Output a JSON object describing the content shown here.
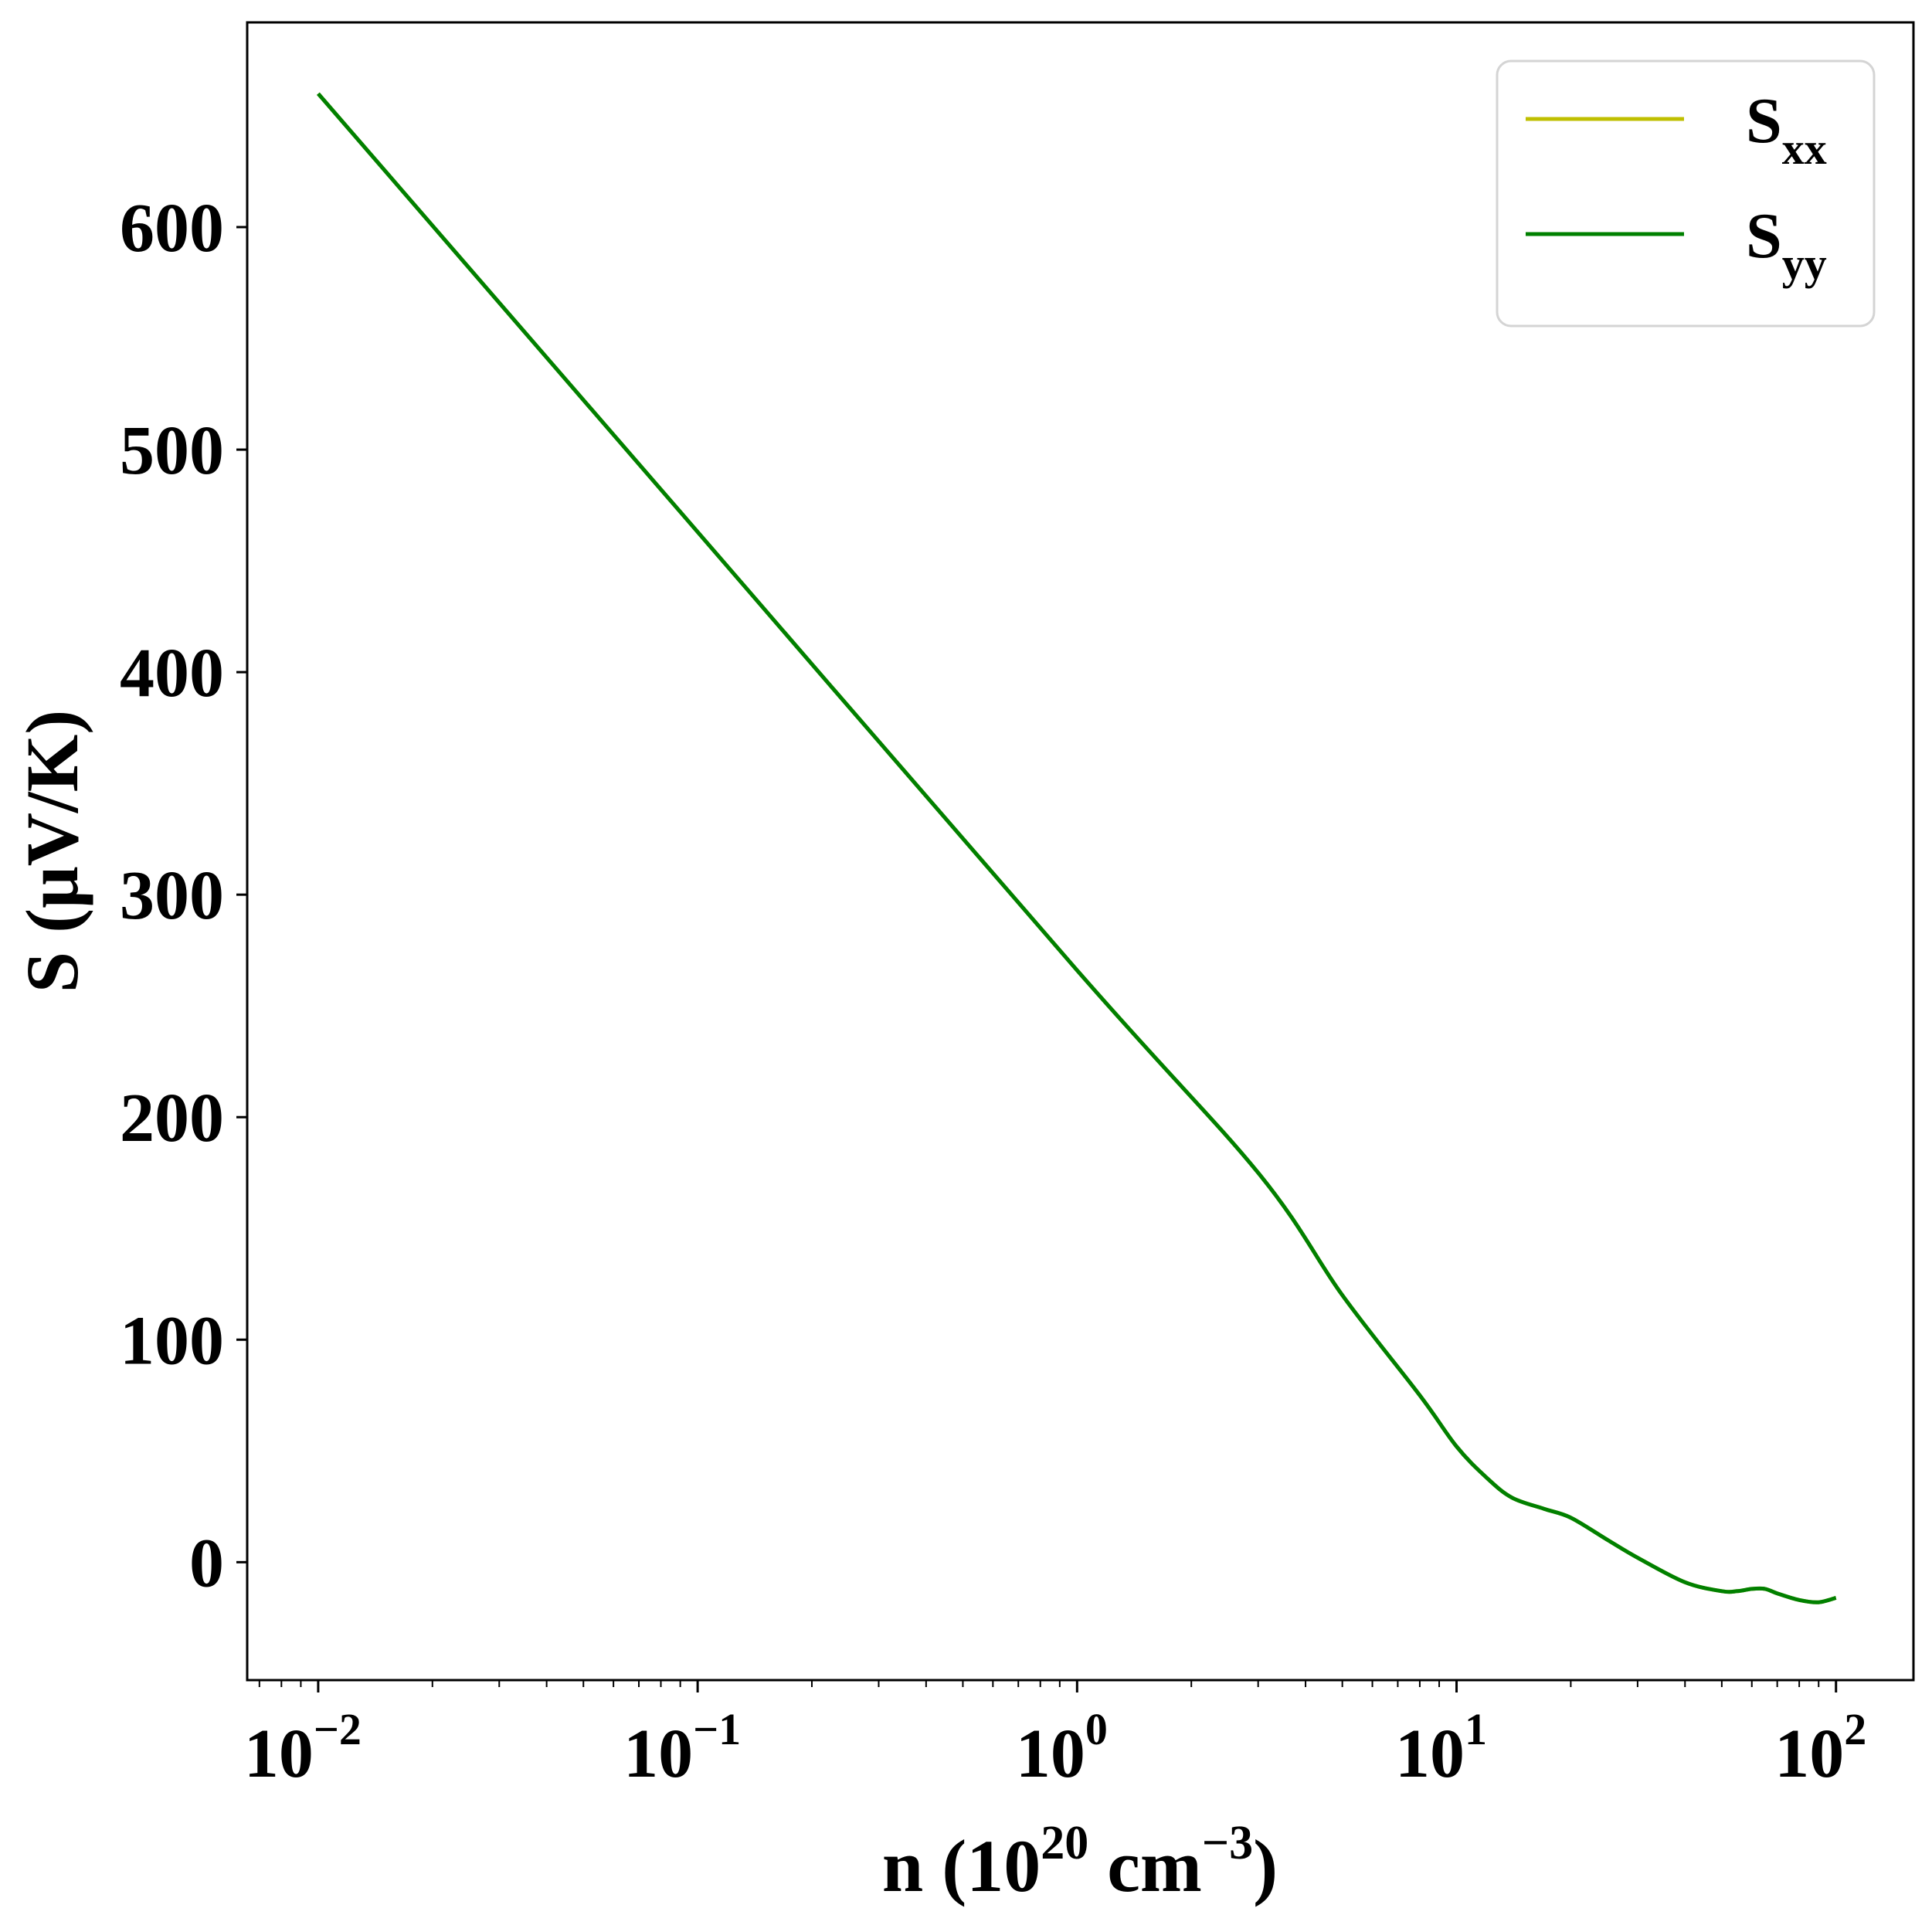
{
  "chart_data": {
    "type": "line",
    "xscale": "log",
    "xlim": [
      0.0065,
      160
    ],
    "ylim": [
      -53,
      692
    ],
    "xlabel": {
      "prefix": "n (10",
      "sup1": "20",
      "mid": " cm",
      "sup2": "−3",
      "suffix": ")"
    },
    "ylabel": "S (μV/K)",
    "grid": false,
    "legend": {
      "position": "upper-right",
      "entries": [
        {
          "base": "S",
          "sub": "xx",
          "color": "#bfbf00"
        },
        {
          "base": "S",
          "sub": "yy",
          "color": "#008000"
        }
      ]
    },
    "yticks": [
      {
        "value": 0,
        "label": "0"
      },
      {
        "value": 100,
        "label": "100"
      },
      {
        "value": 200,
        "label": "200"
      },
      {
        "value": 300,
        "label": "300"
      },
      {
        "value": 400,
        "label": "400"
      },
      {
        "value": 500,
        "label": "500"
      },
      {
        "value": 600,
        "label": "600"
      }
    ],
    "xticks": [
      {
        "value": 0.01,
        "base": "10",
        "exp": "−2"
      },
      {
        "value": 0.1,
        "base": "10",
        "exp": "−1"
      },
      {
        "value": 1,
        "base": "10",
        "exp": "0"
      },
      {
        "value": 10,
        "base": "10",
        "exp": "1"
      },
      {
        "value": 100,
        "base": "10",
        "exp": "2"
      }
    ],
    "series": [
      {
        "legend_index": 0,
        "color": "#bfbf00",
        "x": [
          0.01,
          0.1,
          1,
          3,
          5,
          8,
          10,
          12,
          14,
          17,
          20,
          25,
          30,
          40,
          50,
          55,
          60,
          65,
          70,
          80,
          90,
          100
        ],
        "y": [
          660,
          463,
          266,
          175,
          120,
          75,
          52,
          38,
          29,
          24,
          20,
          10,
          2,
          -9,
          -13,
          -13,
          -12,
          -12,
          -14,
          -17,
          -18,
          -16
        ]
      },
      {
        "legend_index": 1,
        "color": "#008000",
        "x": [
          0.01,
          0.1,
          1,
          3,
          5,
          8,
          10,
          12,
          14,
          17,
          20,
          25,
          30,
          40,
          50,
          55,
          60,
          65,
          70,
          80,
          90,
          100
        ],
        "y": [
          660,
          463,
          266,
          175,
          120,
          75,
          52,
          38,
          29,
          24,
          20,
          10,
          2,
          -9,
          -13,
          -13,
          -12,
          -12,
          -14,
          -17,
          -18,
          -16
        ]
      }
    ]
  }
}
